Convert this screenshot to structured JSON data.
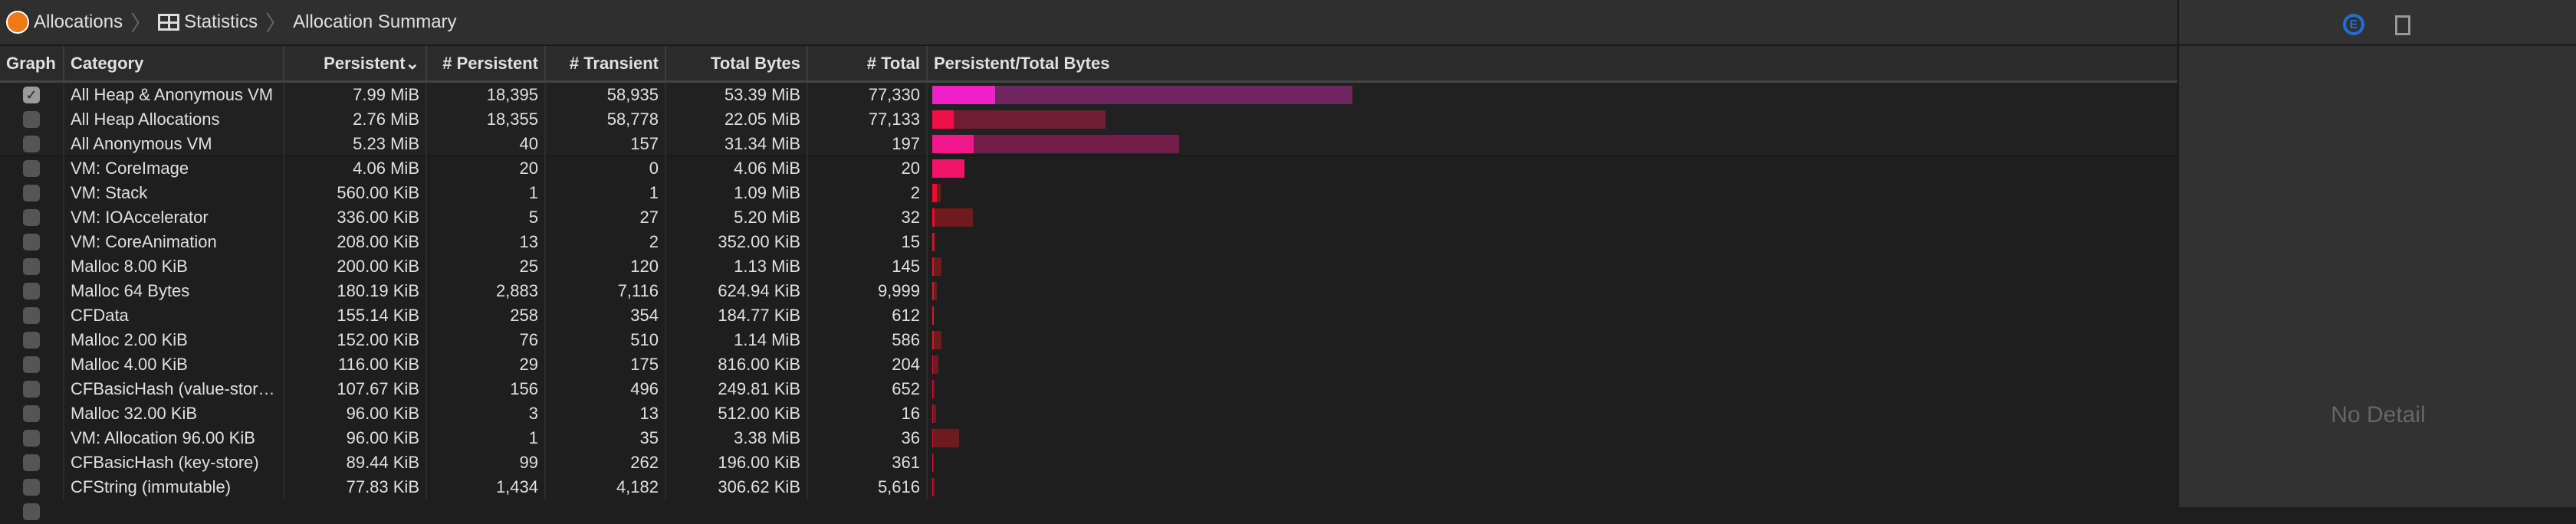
{
  "breadcrumb": {
    "items": [
      "Allocations",
      "Statistics",
      "Allocation Summary"
    ]
  },
  "columns": {
    "graph": "Graph",
    "category": "Category",
    "persistent": "Persistent",
    "persistent_sort": "⌄",
    "n_persistent": "# Persistent",
    "n_transient": "# Transient",
    "total_bytes": "Total Bytes",
    "n_total": "# Total",
    "ratio": "Persistent/Total Bytes"
  },
  "rows": [
    {
      "checked": true,
      "category": "All Heap & Anonymous VM",
      "persistent": "7.99 MiB",
      "n_persistent": "18,395",
      "n_transient": "58,935",
      "total_bytes": "53.39 MiB",
      "n_total": "77,330",
      "colors": [
        "#f020c8",
        "#702460"
      ]
    },
    {
      "checked": false,
      "category": "All Heap Allocations",
      "persistent": "2.76 MiB",
      "n_persistent": "18,355",
      "n_transient": "58,778",
      "total_bytes": "22.05 MiB",
      "n_total": "77,133",
      "colors": [
        "#f01048",
        "#6e1e30"
      ]
    },
    {
      "checked": false,
      "category": "All Anonymous VM",
      "persistent": "5.23 MiB",
      "n_persistent": "40",
      "n_transient": "157",
      "total_bytes": "31.34 MiB",
      "n_total": "197",
      "colors": [
        "#f0188a",
        "#701e48"
      ]
    },
    {
      "checked": false,
      "category": "VM: CoreImage",
      "persistent": "4.06 MiB",
      "n_persistent": "20",
      "n_transient": "0",
      "total_bytes": "4.06 MiB",
      "n_total": "20",
      "colors": [
        "#f01468",
        "#6e1a30"
      ]
    },
    {
      "checked": false,
      "category": "VM: Stack",
      "persistent": "560.00 KiB",
      "n_persistent": "1",
      "n_transient": "1",
      "total_bytes": "1.09 MiB",
      "n_total": "2",
      "colors": [
        "#e8102a",
        "#6e1a1e"
      ]
    },
    {
      "checked": false,
      "category": "VM: IOAccelerator",
      "persistent": "336.00 KiB",
      "n_persistent": "5",
      "n_transient": "27",
      "total_bytes": "5.20 MiB",
      "n_total": "32",
      "colors": [
        "#e8102a",
        "#6e1a1e"
      ]
    },
    {
      "checked": false,
      "category": "VM: CoreAnimation",
      "persistent": "208.00 KiB",
      "n_persistent": "13",
      "n_transient": "2",
      "total_bytes": "352.00 KiB",
      "n_total": "15",
      "colors": [
        "#e8102a",
        "#6e1a1e"
      ]
    },
    {
      "checked": false,
      "category": "Malloc 8.00 KiB",
      "persistent": "200.00 KiB",
      "n_persistent": "25",
      "n_transient": "120",
      "total_bytes": "1.13 MiB",
      "n_total": "145",
      "colors": [
        "#e8102a",
        "#6e1a1e"
      ]
    },
    {
      "checked": false,
      "category": "Malloc 64 Bytes",
      "persistent": "180.19 KiB",
      "n_persistent": "2,883",
      "n_transient": "7,116",
      "total_bytes": "624.94 KiB",
      "n_total": "9,999",
      "colors": [
        "#e8102a",
        "#6e1a1e"
      ]
    },
    {
      "checked": false,
      "category": "CFData",
      "persistent": "155.14 KiB",
      "n_persistent": "258",
      "n_transient": "354",
      "total_bytes": "184.77 KiB",
      "n_total": "612",
      "colors": [
        "#e8102a",
        "#6e1a1e"
      ]
    },
    {
      "checked": false,
      "category": "Malloc 2.00 KiB",
      "persistent": "152.00 KiB",
      "n_persistent": "76",
      "n_transient": "510",
      "total_bytes": "1.14 MiB",
      "n_total": "586",
      "colors": [
        "#e8102a",
        "#6e1a1e"
      ]
    },
    {
      "checked": false,
      "category": "Malloc 4.00 KiB",
      "persistent": "116.00 KiB",
      "n_persistent": "29",
      "n_transient": "175",
      "total_bytes": "816.00 KiB",
      "n_total": "204",
      "colors": [
        "#e8102a",
        "#6e1a1e"
      ]
    },
    {
      "checked": false,
      "category": "CFBasicHash (value-stor…",
      "persistent": "107.67 KiB",
      "n_persistent": "156",
      "n_transient": "496",
      "total_bytes": "249.81 KiB",
      "n_total": "652",
      "colors": [
        "#e8102a",
        "#6e1a1e"
      ]
    },
    {
      "checked": false,
      "category": "Malloc 32.00 KiB",
      "persistent": "96.00 KiB",
      "n_persistent": "3",
      "n_transient": "13",
      "total_bytes": "512.00 KiB",
      "n_total": "16",
      "colors": [
        "#e8102a",
        "#6e1a1e"
      ]
    },
    {
      "checked": false,
      "category": "VM: Allocation 96.00 KiB",
      "persistent": "96.00 KiB",
      "n_persistent": "1",
      "n_transient": "35",
      "total_bytes": "3.38 MiB",
      "n_total": "36",
      "colors": [
        "#e8102a",
        "#6e1a1e"
      ]
    },
    {
      "checked": false,
      "category": "CFBasicHash (key-store)",
      "persistent": "89.44 KiB",
      "n_persistent": "99",
      "n_transient": "262",
      "total_bytes": "196.00 KiB",
      "n_total": "361",
      "colors": [
        "#e8102a",
        "#6e1a1e"
      ]
    },
    {
      "checked": false,
      "category": "CFString (immutable)",
      "persistent": "77.83 KiB",
      "n_persistent": "1,434",
      "n_transient": "4,182",
      "total_bytes": "306.62 KiB",
      "n_total": "5,616",
      "colors": [
        "#e8102a",
        "#6e1a1e"
      ]
    }
  ],
  "detail_panel": {
    "empty_text": "No Detail",
    "icons": [
      "extended-detail-icon",
      "document-icon"
    ],
    "accent": "#1f6fd6"
  }
}
